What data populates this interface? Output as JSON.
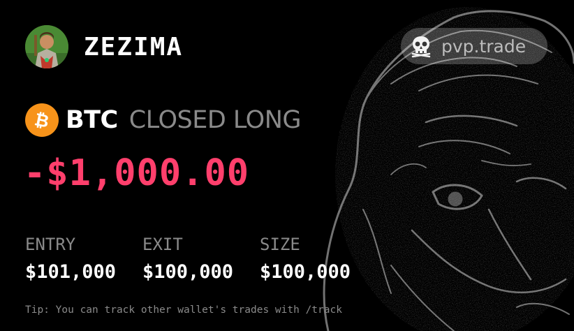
{
  "user": {
    "name": "ZEZIMA",
    "avatar_icon": "runescape-character-avatar"
  },
  "brand": {
    "icon": "skull-icon",
    "label": "pvp.trade"
  },
  "trade": {
    "coin_icon": "bitcoin-icon",
    "ticker": "BTC",
    "status": "CLOSED LONG",
    "pnl": "-$1,000.00",
    "pnl_color": "#ff3f6c",
    "stats": [
      {
        "label": "ENTRY",
        "value": "$101,000"
      },
      {
        "label": "EXIT",
        "value": "$100,000"
      },
      {
        "label": "SIZE",
        "value": "$100,000"
      }
    ]
  },
  "tip": "Tip: You can track other wallet's trades with /track",
  "colors": {
    "background": "#000000",
    "bitcoin_orange": "#f7931a",
    "muted_text": "#8a8a8a"
  }
}
